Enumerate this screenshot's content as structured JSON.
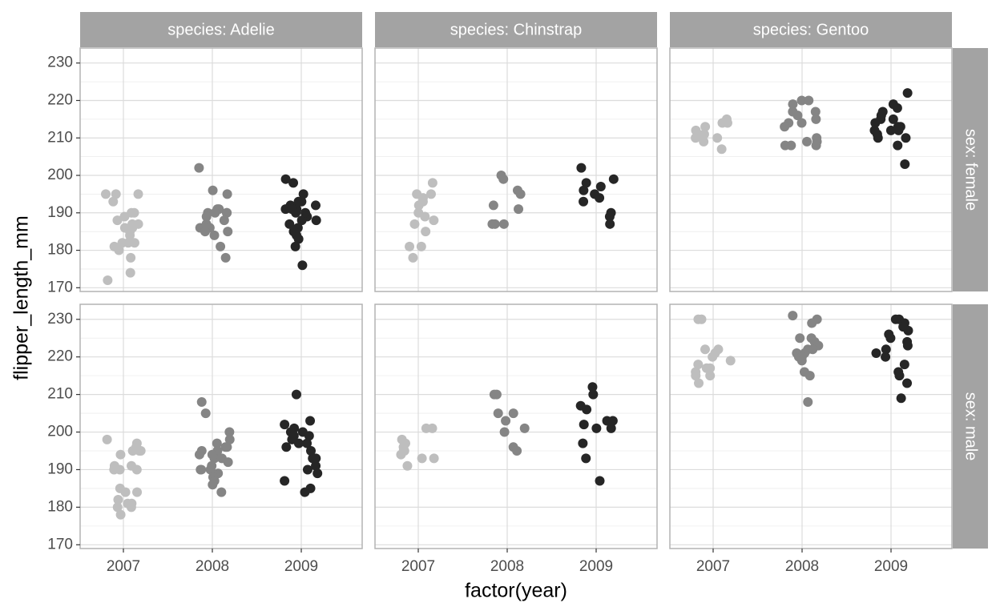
{
  "chart_data": {
    "type": "scatter",
    "x_label": "factor(year)",
    "y_label": "flipper_length_mm",
    "categories": [
      "2007",
      "2008",
      "2009"
    ],
    "columns": [
      "species: Adelie",
      "species: Chinstrap",
      "species: Gentoo"
    ],
    "rows": [
      "sex: female",
      "sex: male"
    ],
    "ylim": [
      169,
      234
    ],
    "yticks": [
      170,
      180,
      190,
      200,
      210,
      220,
      230
    ],
    "minor_yticks": [
      175,
      185,
      195,
      205,
      215,
      225
    ],
    "grid": true,
    "panels": [
      {
        "series": [
          {
            "color": "#bebebe",
            "values": [
              195,
              195,
              195,
              193,
              190,
              189,
              188,
              187,
              186,
              186,
              185,
              182,
              182,
              181,
              180,
              178,
              174,
              172,
              184,
              182,
              187,
              190
            ]
          },
          {
            "color": "#858585",
            "values": [
              202,
              196,
              195,
              191,
              191,
              190,
              190,
              190,
              190,
              189,
              188,
              187,
              186,
              186,
              186,
              185,
              185,
              184,
              181,
              178
            ]
          },
          {
            "color": "#262626",
            "values": [
              199,
              198,
              195,
              193,
              193,
              192,
              192,
              191,
              191,
              190,
              189,
              188,
              188,
              187,
              186,
              185,
              184,
              183,
              181,
              176,
              190,
              191
            ]
          }
        ]
      },
      {
        "series": [
          {
            "color": "#bebebe",
            "values": [
              198,
              195,
              195,
              194,
              193,
              192,
              190,
              189,
              188,
              187,
              185,
              181,
              181,
              178
            ]
          },
          {
            "color": "#858585",
            "values": [
              200,
              199,
              196,
              195,
              192,
              191,
              187,
              187,
              187
            ]
          },
          {
            "color": "#262626",
            "values": [
              202,
              199,
              198,
              197,
              196,
              195,
              194,
              193,
              190,
              189,
              187
            ]
          }
        ]
      },
      {
        "series": [
          {
            "color": "#bebebe",
            "values": [
              215,
              214,
              214,
              213,
              212,
              211,
              211,
              210,
              210,
              209,
              207
            ]
          },
          {
            "color": "#858585",
            "values": [
              220,
              220,
              219,
              217,
              217,
              216,
              215,
              214,
              214,
              213,
              210,
              209,
              209,
              208,
              208,
              208
            ]
          },
          {
            "color": "#262626",
            "values": [
              222,
              219,
              218,
              217,
              216,
              215,
              215,
              214,
              213,
              213,
              212,
              212,
              212,
              211,
              210,
              210,
              208,
              203
            ]
          }
        ]
      },
      {
        "series": [
          {
            "color": "#bebebe",
            "values": [
              198,
              197,
              196,
              195,
              195,
              195,
              194,
              191,
              191,
              190,
              190,
              190,
              185,
              184,
              184,
              182,
              181,
              181,
              180,
              180,
              178
            ]
          },
          {
            "color": "#858585",
            "values": [
              208,
              205,
              200,
              198,
              197,
              196,
              196,
              195,
              195,
              194,
              194,
              193,
              193,
              192,
              191,
              190,
              190,
              190,
              189,
              188,
              187,
              186,
              184
            ]
          },
          {
            "color": "#262626",
            "values": [
              210,
              203,
              202,
              201,
              200,
              200,
              199,
              199,
              198,
              197,
              197,
              196,
              195,
              193,
              193,
              191,
              190,
              189,
              187,
              185,
              184
            ]
          }
        ]
      },
      {
        "series": [
          {
            "color": "#bebebe",
            "values": [
              201,
              201,
              198,
              197,
              196,
              195,
              195,
              194,
              193,
              193,
              191
            ]
          },
          {
            "color": "#858585",
            "values": [
              210,
              210,
              205,
              205,
              203,
              201,
              200,
              196,
              195
            ]
          },
          {
            "color": "#262626",
            "values": [
              212,
              210,
              207,
              206,
              203,
              203,
              202,
              201,
              201,
              197,
              193,
              187
            ]
          }
        ]
      },
      {
        "series": [
          {
            "color": "#bebebe",
            "values": [
              230,
              230,
              222,
              222,
              221,
              220,
              219,
              218,
              217,
              217,
              216,
              215,
              215,
              213
            ]
          },
          {
            "color": "#858585",
            "values": [
              231,
              230,
              229,
              225,
              225,
              224,
              223,
              222,
              222,
              221,
              221,
              220,
              220,
              219,
              216,
              215,
              208
            ]
          },
          {
            "color": "#262626",
            "values": [
              230,
              230,
              229,
              228,
              227,
              226,
              225,
              224,
              223,
              222,
              221,
              220,
              218,
              216,
              215,
              213,
              209
            ]
          }
        ]
      }
    ]
  }
}
